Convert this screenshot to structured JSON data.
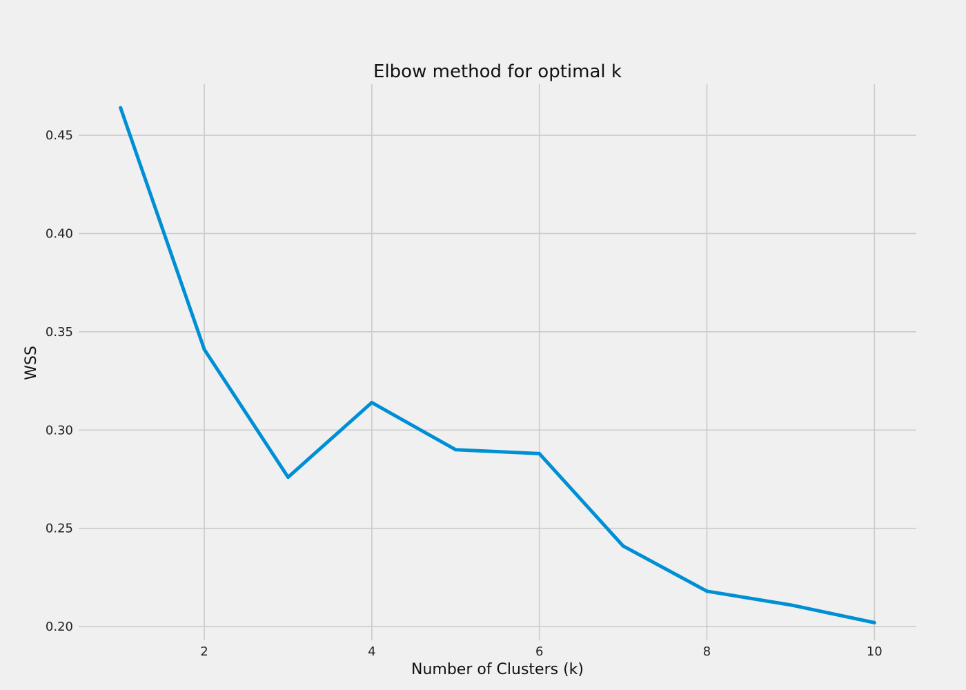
{
  "chart_data": {
    "type": "line",
    "title": "Elbow method for optimal k",
    "xlabel": "Number of Clusters (k)",
    "ylabel": "WSS",
    "x": [
      1,
      2,
      3,
      4,
      5,
      6,
      7,
      8,
      9,
      10
    ],
    "series": [
      {
        "values": [
          0.464,
          0.341,
          0.276,
          0.314,
          0.29,
          0.288,
          0.241,
          0.218,
          0.211,
          0.202
        ]
      }
    ],
    "xlim": [
      0.5,
      10.5
    ],
    "ylim": [
      0.193,
      0.476
    ],
    "x_ticks": [
      2,
      4,
      6,
      8,
      10
    ],
    "x_tick_labels": [
      "2",
      "4",
      "6",
      "8",
      "10"
    ],
    "y_ticks": [
      0.2,
      0.25,
      0.3,
      0.35,
      0.4,
      0.45
    ],
    "y_tick_labels": [
      "0.20",
      "0.25",
      "0.30",
      "0.35",
      "0.40",
      "0.45"
    ],
    "grid": true,
    "legend": "none",
    "colors": {
      "background": "#f0f0f0",
      "grid": "#cbcbcb",
      "line": "#008fd5"
    }
  }
}
